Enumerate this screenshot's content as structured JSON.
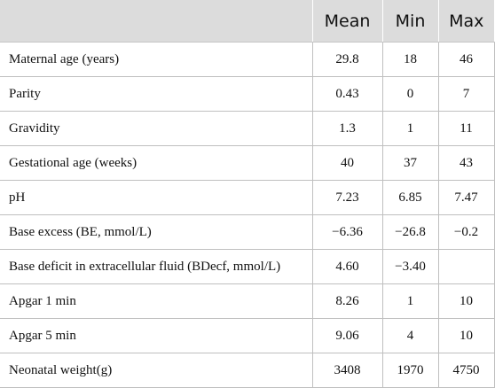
{
  "columns": [
    "",
    "Mean",
    "Min",
    "Max"
  ],
  "rows": [
    {
      "label": "Maternal age (years)",
      "mean": "29.8",
      "min": "18",
      "max": "46"
    },
    {
      "label": "Parity",
      "mean": "0.43",
      "min": "0",
      "max": "7"
    },
    {
      "label": "Gravidity",
      "mean": "1.3",
      "min": "1",
      "max": "11"
    },
    {
      "label": "Gestational age (weeks)",
      "mean": "40",
      "min": "37",
      "max": "43"
    },
    {
      "label": "pH",
      "mean": "7.23",
      "min": "6.85",
      "max": "7.47"
    },
    {
      "label": "Base excess (BE, mmol/L)",
      "mean": "−6.36",
      "min": "−26.8",
      "max": "−0.2"
    },
    {
      "label": "Base deficit in extracellular fluid (BDecf, mmol/L)",
      "mean": "4.60",
      "min": "−3.40",
      "max": ""
    },
    {
      "label": "Apgar 1 min",
      "mean": "8.26",
      "min": "1",
      "max": "10"
    },
    {
      "label": "Apgar 5 min",
      "mean": "9.06",
      "min": "4",
      "max": "10"
    },
    {
      "label": "Neonatal weight(g)",
      "mean": "3408",
      "min": "1970",
      "max": "4750"
    }
  ]
}
